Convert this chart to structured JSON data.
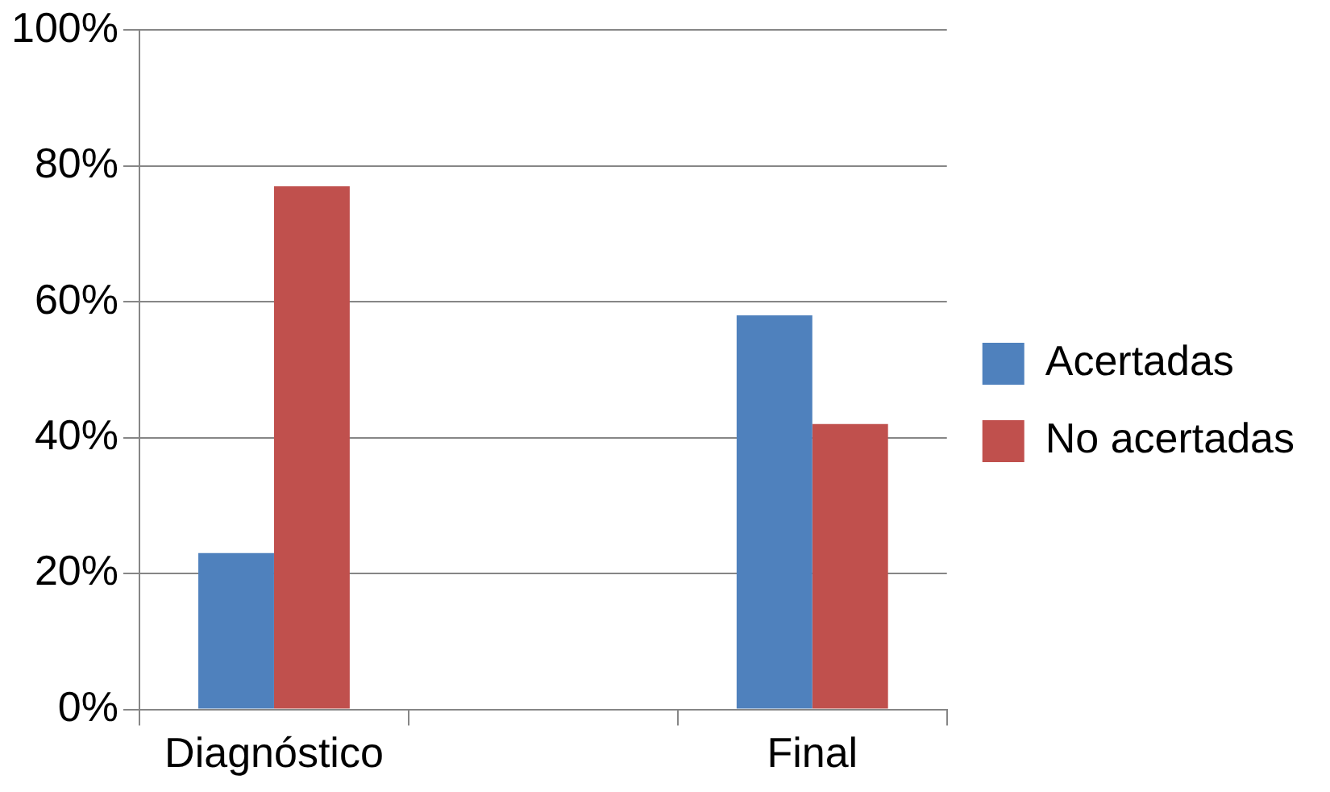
{
  "chart_data": {
    "type": "bar",
    "categories": [
      "Diagnóstico",
      null,
      "Final"
    ],
    "series": [
      {
        "name": "Acertadas",
        "color": "#4f81bd",
        "values": [
          23,
          null,
          58
        ]
      },
      {
        "name": "No acertadas",
        "color": "#c0504d",
        "values": [
          77,
          null,
          42
        ]
      }
    ],
    "ylim": [
      0,
      100
    ],
    "yticks": [
      {
        "value": 0,
        "label": "0%"
      },
      {
        "value": 20,
        "label": "20%"
      },
      {
        "value": 40,
        "label": "40%"
      },
      {
        "value": 60,
        "label": "60%"
      },
      {
        "value": 80,
        "label": "80%"
      },
      {
        "value": 100,
        "label": "100%"
      }
    ],
    "grid": "y",
    "legend": "right"
  }
}
